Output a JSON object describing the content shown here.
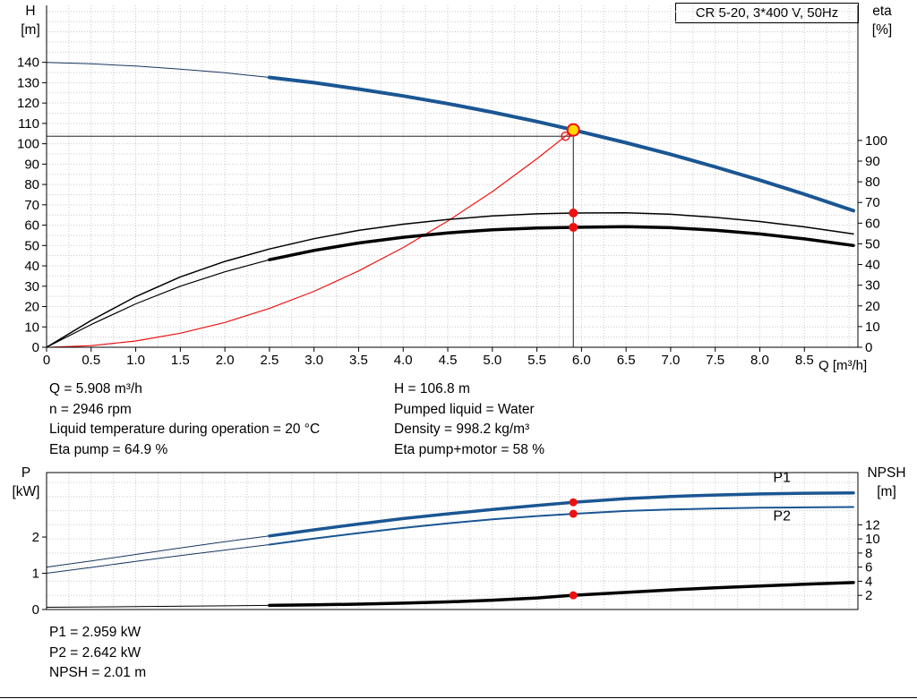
{
  "info_top": {
    "left": [
      "Q = 5.908 m³/h",
      "n = 2946 rpm",
      "Liquid temperature during operation = 20 °C",
      "Eta pump = 64.9 %"
    ],
    "right": [
      "H = 106.8 m",
      "Pumped liquid = Water",
      "Density = 998.2 kg/m³",
      "Eta pump+motor = 58 %"
    ]
  },
  "info_bottom": [
    "P1 = 2.959 kW",
    "P2 = 2.642 kW",
    "NPSH = 2.01 m"
  ],
  "colors": {
    "curve_blue": "#1a5693",
    "lead_blue": "#16365f",
    "red": "#ee1111",
    "black": "#000000",
    "duty_yellow": "#ffd800",
    "grid": "#c9c9c9"
  },
  "chart_data": [
    {
      "type": "line",
      "title": "CR 5-20, 3*400 V, 50Hz",
      "x_axis": {
        "label": "Q [m³/h]",
        "min": 0,
        "max": 9.1,
        "grid_step": 0.25,
        "ticks": [
          0,
          0.5,
          1,
          1.5,
          2,
          2.5,
          3,
          3.5,
          4,
          4.5,
          5,
          5.5,
          6,
          6.5,
          7,
          7.5,
          8,
          8.5
        ],
        "tick_labels": [
          "0",
          "0.5",
          "1.0",
          "1.5",
          "2.0",
          "2.5",
          "3.0",
          "3.5",
          "4.0",
          "4.5",
          "5.0",
          "5.5",
          "6.0",
          "6.5",
          "7.0",
          "7.5",
          "8.0",
          "8.5"
        ]
      },
      "y_left": {
        "title": "H",
        "unit": "[m]",
        "min": 0,
        "max": 168,
        "ticks": [
          0,
          10,
          20,
          30,
          40,
          50,
          60,
          70,
          80,
          90,
          100,
          110,
          120,
          130,
          140
        ]
      },
      "y_right": {
        "title": "eta",
        "unit": "[%]",
        "min": 0,
        "max": 165.3,
        "ticks": [
          0,
          10,
          20,
          30,
          40,
          50,
          60,
          70,
          80,
          90,
          100
        ]
      },
      "grid_y": {
        "axis": "left",
        "step": 5
      },
      "series": [
        {
          "name": "duty-vertical-guide",
          "axis": "left",
          "color": "#000000",
          "width": 0.9,
          "points": [
            [
              5.908,
              0
            ],
            [
              5.908,
              106.8
            ]
          ]
        },
        {
          "name": "duty-horizontal-guide",
          "axis": "left",
          "color": "#000000",
          "width": 0.9,
          "points": [
            [
              0,
              103.7
            ],
            [
              5.908,
              103.7
            ]
          ]
        },
        {
          "name": "system-curve",
          "axis": "left",
          "color": "#ee1111",
          "width": 1.2,
          "points": [
            [
              0.05,
              0
            ],
            [
              0.5,
              0.8
            ],
            [
              1,
              3.1
            ],
            [
              1.5,
              6.9
            ],
            [
              2,
              12.2
            ],
            [
              2.5,
              19.1
            ],
            [
              3,
              27.5
            ],
            [
              3.5,
              37.5
            ],
            [
              4,
              49
            ],
            [
              4.5,
              62
            ],
            [
              5,
              76.5
            ],
            [
              5.5,
              92.6
            ],
            [
              5.82,
              103.7
            ],
            [
              5.908,
              106.8
            ]
          ]
        },
        {
          "name": "eta-pump-curve",
          "axis": "right",
          "color": "#000000",
          "width": 1.5,
          "points": [
            [
              0,
              0
            ],
            [
              0.5,
              13
            ],
            [
              1,
              24.5
            ],
            [
              1.5,
              34
            ],
            [
              2,
              41.5
            ],
            [
              2.5,
              47.5
            ],
            [
              3,
              52.5
            ],
            [
              3.5,
              56.5
            ],
            [
              4,
              59.5
            ],
            [
              4.5,
              61.8
            ],
            [
              5,
              63.5
            ],
            [
              5.5,
              64.5
            ],
            [
              5.908,
              64.9
            ],
            [
              6.5,
              65
            ],
            [
              7,
              64.3
            ],
            [
              7.5,
              62.8
            ],
            [
              8,
              60.8
            ],
            [
              8.5,
              58.2
            ],
            [
              9.05,
              54.8
            ]
          ]
        },
        {
          "name": "eta-pump-motor-lead",
          "axis": "right",
          "color": "#000000",
          "width": 1.2,
          "points": [
            [
              0,
              0
            ],
            [
              0.5,
              11
            ],
            [
              1,
              21
            ],
            [
              1.5,
              29.5
            ],
            [
              2,
              36.5
            ],
            [
              2.5,
              42.3
            ]
          ]
        },
        {
          "name": "eta-pump-motor-curve",
          "axis": "right",
          "color": "#000000",
          "width": 3.5,
          "points": [
            [
              2.5,
              42.3
            ],
            [
              3,
              46.8
            ],
            [
              3.5,
              50.4
            ],
            [
              4,
              53.2
            ],
            [
              4.5,
              55.3
            ],
            [
              5,
              56.8
            ],
            [
              5.5,
              57.7
            ],
            [
              5.908,
              58
            ],
            [
              6.5,
              58.3
            ],
            [
              7,
              57.8
            ],
            [
              7.5,
              56.6
            ],
            [
              8,
              54.8
            ],
            [
              8.5,
              52.4
            ],
            [
              9.05,
              49.2
            ]
          ]
        },
        {
          "name": "head-curve-lead",
          "axis": "left",
          "color": "#16365f",
          "width": 1,
          "points": [
            [
              0,
              140
            ],
            [
              0.5,
              139.3
            ],
            [
              1,
              138.2
            ],
            [
              1.5,
              136.7
            ],
            [
              2,
              134.9
            ],
            [
              2.5,
              132.6
            ]
          ]
        },
        {
          "name": "head-curve",
          "axis": "left",
          "color": "#1a5693",
          "width": 4,
          "points": [
            [
              2.5,
              132.6
            ],
            [
              3,
              130
            ],
            [
              3.5,
              126.9
            ],
            [
              4,
              123.5
            ],
            [
              4.5,
              119.7
            ],
            [
              5,
              115.5
            ],
            [
              5.5,
              110.9
            ],
            [
              5.908,
              106.8
            ],
            [
              6.5,
              100.5
            ],
            [
              7,
              94.8
            ],
            [
              7.5,
              88.6
            ],
            [
              8,
              82.1
            ],
            [
              8.5,
              75.2
            ],
            [
              9.05,
              67.1
            ]
          ]
        }
      ],
      "markers": [
        {
          "name": "requested-duty-marker",
          "x": 5.82,
          "y": 103.7,
          "axis": "left",
          "r": 4.5,
          "fill": "none",
          "stroke": "#ee1111",
          "sw": 1.4
        },
        {
          "name": "duty-point-marker",
          "x": 5.908,
          "y": 106.8,
          "axis": "left",
          "r": 6.5,
          "fill": "#ffd800",
          "stroke": "#ee1111",
          "sw": 2
        },
        {
          "name": "eta-pump-marker",
          "x": 5.908,
          "y": 64.9,
          "axis": "right",
          "r": 5,
          "fill": "#ee1111"
        },
        {
          "name": "eta-pump-motor-marker",
          "x": 5.908,
          "y": 58,
          "axis": "right",
          "r": 5,
          "fill": "#ee1111"
        }
      ],
      "annotations": []
    },
    {
      "type": "line",
      "title": "",
      "x_axis": {
        "label": "",
        "min": 0,
        "max": 9.1,
        "grid_step": 0.25,
        "ticks": [],
        "tick_labels": []
      },
      "y_left": {
        "title": "P",
        "unit": "[kW]",
        "min": 0,
        "max": 3.78,
        "ticks": [
          0,
          1,
          2
        ]
      },
      "y_right": {
        "title": "NPSH",
        "unit": "[m]",
        "min": 0,
        "max": 19.4,
        "ticks": [
          2,
          4,
          6,
          8,
          10,
          12
        ]
      },
      "grid_y": {
        "axis": "right",
        "step": 2
      },
      "series": [
        {
          "name": "p2-curve-lead",
          "axis": "left",
          "color": "#16365f",
          "width": 1,
          "points": [
            [
              0,
              1.0
            ],
            [
              0.5,
              1.16
            ],
            [
              1,
              1.33
            ],
            [
              1.5,
              1.49
            ],
            [
              2,
              1.64
            ],
            [
              2.5,
              1.79
            ]
          ]
        },
        {
          "name": "p1-curve-lead",
          "axis": "left",
          "color": "#16365f",
          "width": 1,
          "points": [
            [
              0,
              1.17
            ],
            [
              0.5,
              1.34
            ],
            [
              1,
              1.52
            ],
            [
              1.5,
              1.7
            ],
            [
              2,
              1.87
            ],
            [
              2.5,
              2.03
            ]
          ]
        },
        {
          "name": "p2-curve",
          "axis": "left",
          "color": "#1a5693",
          "width": 2,
          "points": [
            [
              2.5,
              1.79
            ],
            [
              3,
              1.96
            ],
            [
              3.5,
              2.11
            ],
            [
              4,
              2.25
            ],
            [
              4.5,
              2.38
            ],
            [
              5,
              2.49
            ],
            [
              5.5,
              2.58
            ],
            [
              5.908,
              2.642
            ],
            [
              6.5,
              2.72
            ],
            [
              7,
              2.76
            ],
            [
              7.5,
              2.79
            ],
            [
              8,
              2.81
            ],
            [
              8.5,
              2.82
            ],
            [
              9.05,
              2.83
            ]
          ]
        },
        {
          "name": "p1-curve",
          "axis": "left",
          "color": "#1a5693",
          "width": 3.5,
          "points": [
            [
              2.5,
              2.03
            ],
            [
              3,
              2.2
            ],
            [
              3.5,
              2.36
            ],
            [
              4,
              2.51
            ],
            [
              4.5,
              2.64
            ],
            [
              5,
              2.76
            ],
            [
              5.5,
              2.87
            ],
            [
              5.908,
              2.959
            ],
            [
              6.5,
              3.06
            ],
            [
              7,
              3.12
            ],
            [
              7.5,
              3.16
            ],
            [
              8,
              3.19
            ],
            [
              8.5,
              3.21
            ],
            [
              9.05,
              3.22
            ]
          ]
        },
        {
          "name": "npsh-curve-lead",
          "axis": "right",
          "color": "#000000",
          "width": 1,
          "points": [
            [
              0,
              0.32
            ],
            [
              1,
              0.4
            ],
            [
              2,
              0.52
            ],
            [
              2.5,
              0.58
            ]
          ]
        },
        {
          "name": "npsh-curve",
          "axis": "right",
          "color": "#000000",
          "width": 3.5,
          "points": [
            [
              2.5,
              0.58
            ],
            [
              3,
              0.66
            ],
            [
              3.5,
              0.76
            ],
            [
              4,
              0.9
            ],
            [
              4.5,
              1.08
            ],
            [
              5,
              1.32
            ],
            [
              5.5,
              1.63
            ],
            [
              5.908,
              2.01
            ],
            [
              6.5,
              2.42
            ],
            [
              7,
              2.78
            ],
            [
              7.5,
              3.08
            ],
            [
              8,
              3.33
            ],
            [
              8.5,
              3.57
            ],
            [
              9.05,
              3.82
            ]
          ]
        }
      ],
      "markers": [
        {
          "name": "p1-marker",
          "x": 5.908,
          "y": 2.959,
          "axis": "left",
          "r": 4.5,
          "fill": "#ee1111"
        },
        {
          "name": "p2-marker",
          "x": 5.908,
          "y": 2.642,
          "axis": "left",
          "r": 4.5,
          "fill": "#ee1111"
        },
        {
          "name": "npsh-marker",
          "x": 5.908,
          "y": 2.01,
          "axis": "right",
          "r": 4.5,
          "fill": "#ee1111"
        }
      ],
      "annotations": [
        {
          "name": "p1-label",
          "text": "P1",
          "x": 8.15,
          "y": 3.52,
          "axis": "left",
          "color": "#1a5693"
        },
        {
          "name": "p2-label",
          "text": "P2",
          "x": 8.15,
          "y": 2.46,
          "axis": "left",
          "color": "#1a5693"
        }
      ]
    }
  ]
}
